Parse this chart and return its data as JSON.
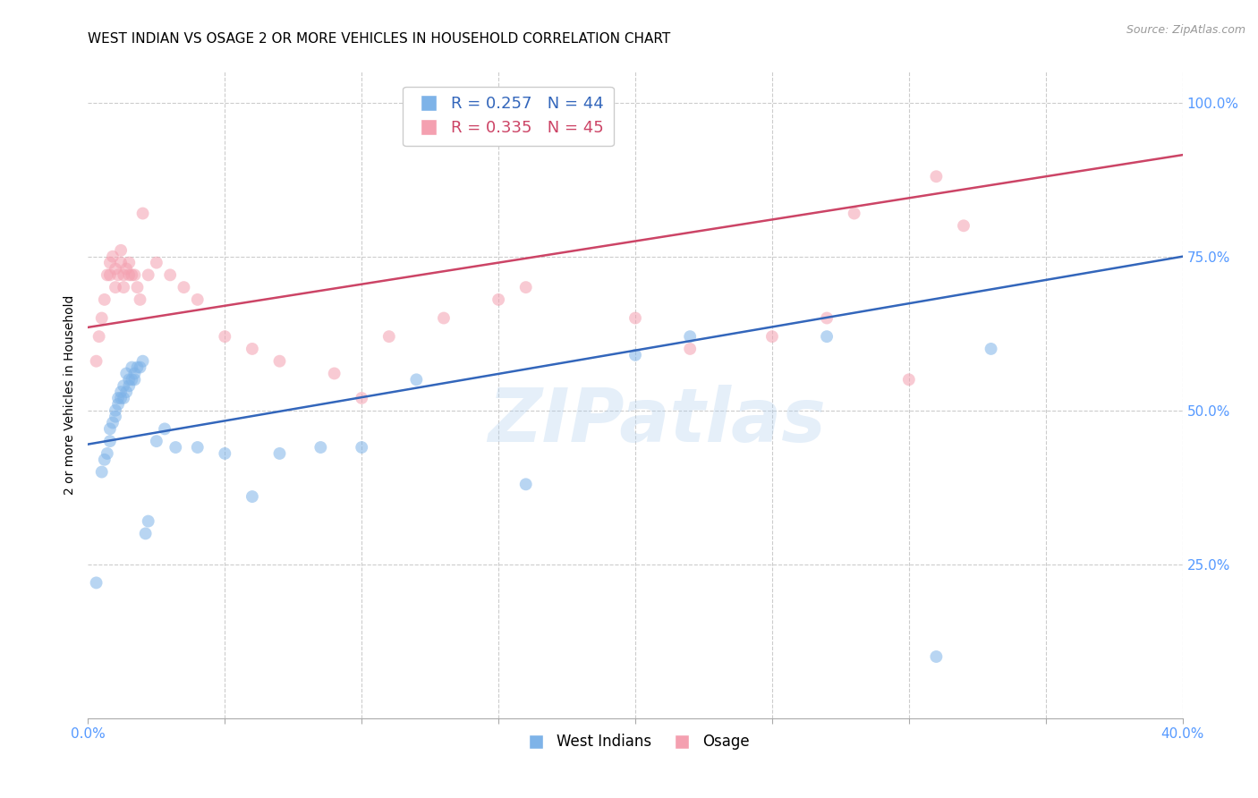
{
  "title": "WEST INDIAN VS OSAGE 2 OR MORE VEHICLES IN HOUSEHOLD CORRELATION CHART",
  "source": "Source: ZipAtlas.com",
  "ylabel": "2 or more Vehicles in Household",
  "xlim": [
    0.0,
    0.4
  ],
  "ylim": [
    0.0,
    1.05
  ],
  "xticks": [
    0.0,
    0.05,
    0.1,
    0.15,
    0.2,
    0.25,
    0.3,
    0.35,
    0.4
  ],
  "xticklabels": [
    "0.0%",
    "",
    "",
    "",
    "",
    "",
    "",
    "",
    "40.0%"
  ],
  "yticks_right": [
    0.25,
    0.5,
    0.75,
    1.0
  ],
  "yticklabels_right": [
    "25.0%",
    "50.0%",
    "75.0%",
    "100.0%"
  ],
  "legend_blue_label": "R = 0.257   N = 44",
  "legend_pink_label": "R = 0.335   N = 45",
  "legend_bottom_blue": "West Indians",
  "legend_bottom_pink": "Osage",
  "blue_color": "#7EB3E8",
  "pink_color": "#F4A0B0",
  "blue_line_color": "#3366BB",
  "pink_line_color": "#CC4466",
  "axis_tick_color": "#5599FF",
  "watermark_text": "ZIPatlas",
  "blue_scatter_x": [
    0.003,
    0.005,
    0.006,
    0.007,
    0.008,
    0.008,
    0.009,
    0.01,
    0.01,
    0.011,
    0.011,
    0.012,
    0.012,
    0.013,
    0.013,
    0.014,
    0.014,
    0.015,
    0.015,
    0.016,
    0.016,
    0.017,
    0.017,
    0.018,
    0.019,
    0.02,
    0.021,
    0.022,
    0.025,
    0.028,
    0.032,
    0.04,
    0.05,
    0.06,
    0.07,
    0.085,
    0.1,
    0.12,
    0.16,
    0.2,
    0.22,
    0.27,
    0.31,
    0.33
  ],
  "blue_scatter_y": [
    0.22,
    0.4,
    0.42,
    0.43,
    0.45,
    0.47,
    0.48,
    0.49,
    0.5,
    0.51,
    0.52,
    0.52,
    0.53,
    0.52,
    0.54,
    0.53,
    0.56,
    0.54,
    0.55,
    0.55,
    0.57,
    0.55,
    0.56,
    0.57,
    0.57,
    0.58,
    0.3,
    0.32,
    0.45,
    0.47,
    0.44,
    0.44,
    0.43,
    0.36,
    0.43,
    0.44,
    0.44,
    0.55,
    0.38,
    0.59,
    0.62,
    0.62,
    0.1,
    0.6
  ],
  "pink_scatter_x": [
    0.003,
    0.004,
    0.005,
    0.006,
    0.007,
    0.008,
    0.008,
    0.009,
    0.01,
    0.01,
    0.011,
    0.012,
    0.012,
    0.013,
    0.013,
    0.014,
    0.015,
    0.015,
    0.016,
    0.017,
    0.018,
    0.019,
    0.02,
    0.022,
    0.025,
    0.03,
    0.035,
    0.04,
    0.05,
    0.06,
    0.07,
    0.09,
    0.1,
    0.11,
    0.13,
    0.15,
    0.16,
    0.2,
    0.22,
    0.25,
    0.27,
    0.28,
    0.3,
    0.31,
    0.32
  ],
  "pink_scatter_y": [
    0.58,
    0.62,
    0.65,
    0.68,
    0.72,
    0.72,
    0.74,
    0.75,
    0.7,
    0.73,
    0.72,
    0.74,
    0.76,
    0.7,
    0.72,
    0.73,
    0.72,
    0.74,
    0.72,
    0.72,
    0.7,
    0.68,
    0.82,
    0.72,
    0.74,
    0.72,
    0.7,
    0.68,
    0.62,
    0.6,
    0.58,
    0.56,
    0.52,
    0.62,
    0.65,
    0.68,
    0.7,
    0.65,
    0.6,
    0.62,
    0.65,
    0.82,
    0.55,
    0.88,
    0.8
  ],
  "blue_line_x0": 0.0,
  "blue_line_x1": 0.4,
  "blue_line_y0": 0.445,
  "blue_line_y1": 0.75,
  "pink_line_x0": 0.0,
  "pink_line_x1": 0.4,
  "pink_line_y0": 0.635,
  "pink_line_y1": 0.915,
  "background_color": "#FFFFFF",
  "grid_color": "#CCCCCC",
  "title_fontsize": 11,
  "axis_label_fontsize": 10,
  "tick_fontsize": 11,
  "marker_size": 100,
  "marker_alpha": 0.55,
  "line_width": 1.8
}
